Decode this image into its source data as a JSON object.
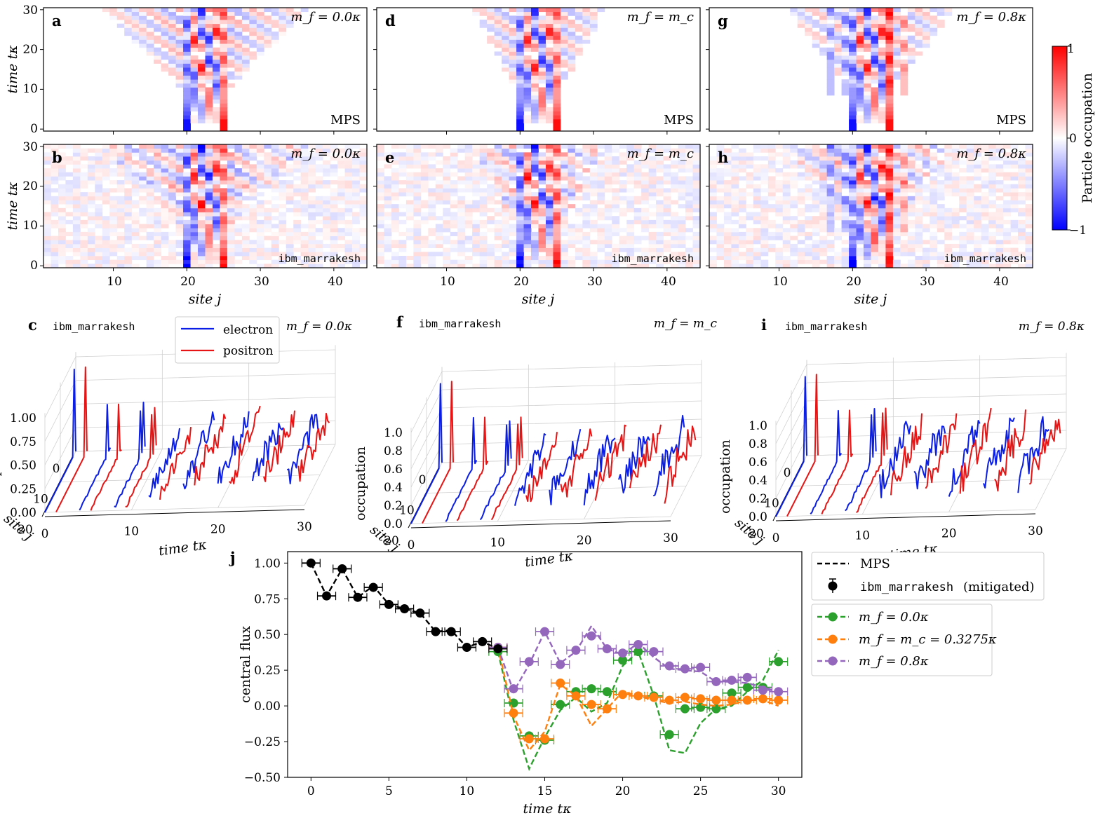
{
  "colors": {
    "electron": "#0a1ee6",
    "positron": "#e61414",
    "mps_line": "#000000",
    "mf0": "#2ca02c",
    "mfc": "#ff7f0e",
    "mf08": "#9467bd",
    "cmap_neg": "#0000ff",
    "cmap_pos": "#ff0000",
    "grid": "#cccccc"
  },
  "heatmaps": {
    "xlabel": "site j",
    "ylabel": "time tκ",
    "x_ticks": [
      "10",
      "20",
      "30",
      "40"
    ],
    "y_ticks": [
      "0",
      "10",
      "20",
      "30"
    ],
    "colorbar": {
      "label": "Particle occupation",
      "max": "1",
      "mid": "0",
      "min": "−1"
    },
    "panels": [
      {
        "letter": "a",
        "mass": "m_f = 0.0κ",
        "source": "MPS"
      },
      {
        "letter": "b",
        "mass": "m_f = 0.0κ",
        "source": "ibm_marrakesh"
      },
      {
        "letter": "d",
        "mass": "m_f = m_c",
        "source": "MPS"
      },
      {
        "letter": "e",
        "mass": "m_f = m_c",
        "source": "ibm_marrakesh"
      },
      {
        "letter": "g",
        "mass": "m_f = 0.8κ",
        "source": "MPS"
      },
      {
        "letter": "h",
        "mass": "m_f = 0.8κ",
        "source": "ibm_marrakesh"
      }
    ]
  },
  "panels3d": [
    {
      "letter": "c",
      "device": "ibm_marrakesh",
      "mass": "m_f = 0.0κ",
      "z_ticks": [
        "0.00",
        "0.25",
        "0.50",
        "0.75",
        "1.00"
      ]
    },
    {
      "letter": "f",
      "device": "ibm_marrakesh",
      "mass": "m_f = m_c",
      "z_ticks": [
        "0.0",
        "0.2",
        "0.4",
        "0.6",
        "0.8",
        "1.0"
      ]
    },
    {
      "letter": "i",
      "device": "ibm_marrakesh",
      "mass": "m_f = 0.8κ",
      "z_ticks": [
        "0.0",
        "0.2",
        "0.4",
        "0.6",
        "0.8",
        "1.0"
      ]
    }
  ],
  "panel3d_axes": {
    "zlabel": "occupation",
    "site_label": "site j",
    "time_label": "time tκ",
    "site_ticks": [
      "0",
      "10",
      "20"
    ],
    "time_ticks": [
      "0",
      "10",
      "20",
      "30"
    ]
  },
  "legend3d": {
    "electron": "electron",
    "positron": "positron"
  },
  "chart_data": {
    "type": "line",
    "title": "j",
    "xlabel": "time tκ",
    "ylabel": "central flux",
    "xlim": [
      -1.5,
      31.5
    ],
    "ylim": [
      -0.5,
      1.08
    ],
    "x_ticks": [
      "0",
      "5",
      "10",
      "15",
      "20",
      "25",
      "30"
    ],
    "y_ticks": [
      "−0.50",
      "−0.25",
      "0.00",
      "0.25",
      "0.50",
      "0.75",
      "1.00"
    ],
    "legend": {
      "mps": "MPS",
      "device": "ibm_marrakesh",
      "device_suffix": "(mitigated)",
      "mf0": "m_f = 0.0κ",
      "mfc": "m_f = m_c = 0.3275κ",
      "mf08": "m_f = 0.8κ"
    },
    "common": {
      "x": [
        0,
        1,
        2,
        3,
        4,
        5,
        6,
        7,
        8,
        9,
        10,
        11,
        12
      ],
      "mps": [
        1.0,
        0.77,
        0.96,
        0.76,
        0.84,
        0.71,
        0.68,
        0.65,
        0.52,
        0.53,
        0.41,
        0.45,
        0.4
      ],
      "device": [
        1.0,
        0.77,
        0.96,
        0.76,
        0.83,
        0.71,
        0.68,
        0.65,
        0.52,
        0.52,
        0.41,
        0.45,
        0.4
      ]
    },
    "series": [
      {
        "name": "m_f = 0.0κ",
        "color_key": "mf0",
        "x": [
          12,
          13,
          14,
          15,
          16,
          17,
          18,
          19,
          20,
          21,
          22,
          23,
          24,
          25,
          26,
          27,
          28,
          29,
          30
        ],
        "mps": [
          0.38,
          -0.1,
          -0.44,
          -0.22,
          -0.03,
          0.06,
          -0.04,
          0.02,
          0.28,
          0.38,
          0.07,
          -0.31,
          -0.33,
          -0.12,
          -0.02,
          0.0,
          0.1,
          0.18,
          0.39
        ],
        "device": [
          0.38,
          0.02,
          -0.21,
          -0.24,
          0.01,
          0.1,
          0.12,
          0.1,
          0.32,
          0.38,
          0.07,
          -0.2,
          -0.02,
          -0.01,
          -0.02,
          0.09,
          0.13,
          0.13,
          0.31
        ]
      },
      {
        "name": "m_f = m_c = 0.3275κ",
        "color_key": "mfc",
        "x": [
          12,
          13,
          14,
          15,
          16,
          17,
          18,
          19,
          20,
          21,
          22,
          23,
          24,
          25,
          26,
          27,
          28,
          29,
          30
        ],
        "mps": [
          0.41,
          -0.07,
          -0.31,
          -0.18,
          0.15,
          0.07,
          -0.14,
          -0.02,
          0.1,
          0.07,
          0.04,
          0.02,
          0.03,
          0.01,
          0.0,
          0.01,
          0.04,
          0.04,
          0.0
        ],
        "device": [
          0.41,
          -0.05,
          -0.23,
          -0.23,
          0.16,
          0.07,
          0.01,
          -0.02,
          0.08,
          0.07,
          0.06,
          0.04,
          0.06,
          0.05,
          0.04,
          0.04,
          0.04,
          0.05,
          0.04
        ]
      },
      {
        "name": "m_f = 0.8κ",
        "color_key": "mf08",
        "x": [
          12,
          13,
          14,
          15,
          16,
          17,
          18,
          19,
          20,
          21,
          22,
          23,
          24,
          25,
          26,
          27,
          28,
          29,
          30
        ],
        "mps": [
          0.41,
          0.1,
          0.29,
          0.52,
          0.3,
          0.38,
          0.56,
          0.4,
          0.36,
          0.44,
          0.34,
          0.26,
          0.25,
          0.24,
          0.17,
          0.17,
          0.16,
          0.13,
          0.1
        ],
        "device": [
          0.41,
          0.12,
          0.31,
          0.52,
          0.29,
          0.39,
          0.49,
          0.4,
          0.37,
          0.43,
          0.38,
          0.28,
          0.26,
          0.27,
          0.17,
          0.18,
          0.2,
          0.11,
          0.1
        ]
      }
    ]
  }
}
